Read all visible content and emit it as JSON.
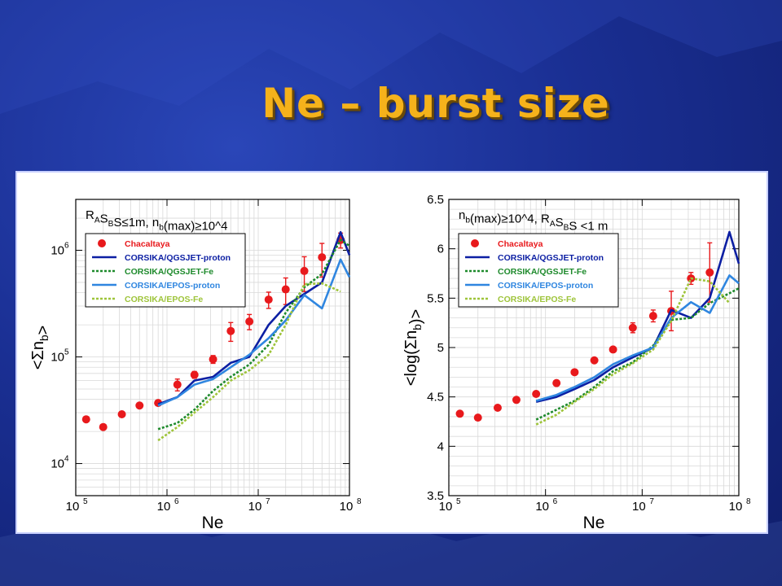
{
  "slide": {
    "title": "Ne – burst size"
  },
  "chart_data": [
    {
      "type": "scatter",
      "xlabel": "Ne",
      "ylabel": "<Σn_b>",
      "xscale": "log",
      "yscale": "log",
      "xlim": [
        100000,
        100000000
      ],
      "ylim": [
        5000,
        3000000
      ],
      "xticks": [
        {
          "v": 100000,
          "m": "10",
          "e": "5"
        },
        {
          "v": 1000000,
          "m": "10",
          "e": "6"
        },
        {
          "v": 10000000,
          "m": "10",
          "e": "7"
        },
        {
          "v": 100000000,
          "m": "10",
          "e": "8"
        }
      ],
      "yticks": [
        {
          "v": 10000,
          "m": "10",
          "e": "4"
        },
        {
          "v": 100000,
          "m": "10",
          "e": "5"
        },
        {
          "v": 1000000,
          "m": "10",
          "e": "6"
        }
      ],
      "annotation": "R_AS_BS≤1m, n_b(max)≥10^4",
      "legend_position": "top-left",
      "grid": true,
      "series": [
        {
          "name": "Chacaltaya",
          "style": "points",
          "color": "#e8191c",
          "x": [
            130000,
            200000,
            320000,
            500000,
            800000,
            1300000,
            2000000,
            3200000,
            5000000,
            8000000,
            13000000,
            20000000,
            32000000,
            50000000,
            80000000
          ],
          "y": [
            26000,
            22000,
            29000,
            35000,
            37000,
            55000,
            68000,
            95000,
            175000,
            215000,
            345000,
            430000,
            640000,
            860000,
            1250000
          ],
          "err": [
            0,
            0,
            0,
            0,
            0,
            7000,
            5000,
            8000,
            35000,
            35000,
            60000,
            120000,
            230000,
            300000,
            200000
          ]
        },
        {
          "name": "CORSIKA/QGSJET-proton",
          "style": "solid",
          "color": "#0c1fa3",
          "x": [
            800000,
            1300000,
            2000000,
            3200000,
            5000000,
            8000000,
            13000000,
            20000000,
            32000000,
            50000000,
            80000000,
            100000000
          ],
          "y": [
            36000,
            42000,
            60000,
            65000,
            88000,
            100000,
            200000,
            300000,
            390000,
            500000,
            1480000,
            900000
          ]
        },
        {
          "name": "CORSIKA/QGSJET-Fe",
          "style": "dashed",
          "color": "#1e8a2c",
          "x": [
            800000,
            1300000,
            2000000,
            3200000,
            5000000,
            8000000,
            13000000,
            20000000,
            32000000,
            50000000,
            80000000,
            100000000
          ],
          "y": [
            21000,
            24000,
            32000,
            48000,
            65000,
            85000,
            130000,
            260000,
            450000,
            600000,
            1250000,
            1100000
          ]
        },
        {
          "name": "CORSIKA/EPOS-proton",
          "style": "solid",
          "color": "#2f86e0",
          "x": [
            800000,
            1300000,
            2000000,
            3200000,
            5000000,
            8000000,
            13000000,
            20000000,
            32000000,
            50000000,
            80000000,
            100000000
          ],
          "y": [
            35000,
            42000,
            55000,
            62000,
            80000,
            105000,
            150000,
            220000,
            380000,
            285000,
            820000,
            560000
          ]
        },
        {
          "name": "CORSIKA/EPOS-Fe",
          "style": "dashed",
          "color": "#9ec43a",
          "x": [
            800000,
            1300000,
            2000000,
            3200000,
            5000000,
            8000000,
            13000000,
            20000000,
            32000000,
            50000000,
            80000000
          ],
          "y": [
            16500,
            22000,
            30000,
            42000,
            60000,
            75000,
            105000,
            200000,
            480000,
            490000,
            410000
          ]
        }
      ]
    },
    {
      "type": "scatter",
      "xlabel": "Ne",
      "ylabel": "<log(Σn_b)>",
      "xscale": "log",
      "yscale": "linear",
      "xlim": [
        100000,
        100000000
      ],
      "ylim": [
        3.5,
        6.5
      ],
      "xticks": [
        {
          "v": 100000,
          "m": "10",
          "e": "5"
        },
        {
          "v": 1000000,
          "m": "10",
          "e": "6"
        },
        {
          "v": 10000000,
          "m": "10",
          "e": "7"
        },
        {
          "v": 100000000,
          "m": "10",
          "e": "8"
        }
      ],
      "yticks": [
        {
          "v": 3.5,
          "m": "3.5"
        },
        {
          "v": 4,
          "m": "4"
        },
        {
          "v": 4.5,
          "m": "4.5"
        },
        {
          "v": 5,
          "m": "5"
        },
        {
          "v": 5.5,
          "m": "5.5"
        },
        {
          "v": 6,
          "m": "6"
        },
        {
          "v": 6.5,
          "m": "6.5"
        }
      ],
      "annotation": "n_b(max)≥10^4, R_AS_BS <1 m",
      "legend_position": "top-left",
      "grid": true,
      "series": [
        {
          "name": "Chacaltaya",
          "style": "points",
          "color": "#e8191c",
          "x": [
            130000,
            200000,
            320000,
            500000,
            800000,
            1300000,
            2000000,
            3200000,
            5000000,
            8000000,
            13000000,
            20000000,
            32000000,
            50000000
          ],
          "y": [
            4.33,
            4.29,
            4.39,
            4.47,
            4.53,
            4.64,
            4.75,
            4.87,
            4.98,
            5.2,
            5.32,
            5.37,
            5.7,
            5.76
          ],
          "err": [
            0,
            0,
            0,
            0,
            0,
            0,
            0,
            0,
            0,
            0.05,
            0.06,
            0.2,
            0.06,
            0.3
          ]
        },
        {
          "name": "CORSIKA/QGSJET-proton",
          "style": "solid",
          "color": "#0c1fa3",
          "x": [
            800000,
            1300000,
            2000000,
            3200000,
            5000000,
            8000000,
            13000000,
            20000000,
            32000000,
            50000000,
            80000000,
            100000000
          ],
          "y": [
            4.45,
            4.5,
            4.58,
            4.67,
            4.8,
            4.9,
            5.0,
            5.38,
            5.3,
            5.5,
            6.17,
            5.85
          ]
        },
        {
          "name": "CORSIKA/QGSJET-Fe",
          "style": "dashed",
          "color": "#1e8a2c",
          "x": [
            800000,
            1300000,
            2000000,
            3200000,
            5000000,
            8000000,
            13000000,
            20000000,
            32000000,
            50000000,
            80000000,
            100000000
          ],
          "y": [
            4.27,
            4.37,
            4.46,
            4.6,
            4.76,
            4.85,
            5.02,
            5.28,
            5.3,
            5.45,
            5.55,
            5.6
          ]
        },
        {
          "name": "CORSIKA/EPOS-proton",
          "style": "solid",
          "color": "#2f86e0",
          "x": [
            800000,
            1300000,
            2000000,
            3200000,
            5000000,
            8000000,
            13000000,
            20000000,
            32000000,
            50000000,
            80000000,
            100000000
          ],
          "y": [
            4.46,
            4.52,
            4.6,
            4.7,
            4.83,
            4.92,
            5.0,
            5.3,
            5.46,
            5.35,
            5.73,
            5.65
          ]
        },
        {
          "name": "CORSIKA/EPOS-Fe",
          "style": "dashed",
          "color": "#9ec43a",
          "x": [
            800000,
            1300000,
            2000000,
            3200000,
            5000000,
            8000000,
            13000000,
            20000000,
            32000000,
            50000000,
            80000000
          ],
          "y": [
            4.22,
            4.32,
            4.45,
            4.58,
            4.73,
            4.84,
            4.98,
            5.27,
            5.7,
            5.67,
            5.45
          ]
        }
      ]
    }
  ]
}
